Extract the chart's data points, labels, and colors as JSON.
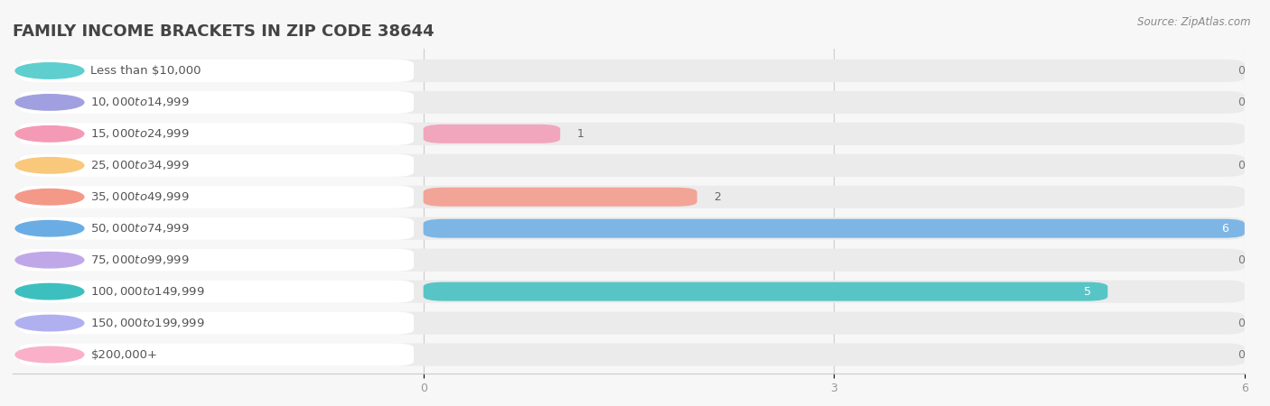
{
  "title": "Family Income Brackets in Zip Code 38644",
  "title_display": "FAMILY INCOME BRACKETS IN ZIP CODE 38644",
  "source": "Source: ZipAtlas.com",
  "categories": [
    "Less than $10,000",
    "$10,000 to $14,999",
    "$15,000 to $24,999",
    "$25,000 to $34,999",
    "$35,000 to $49,999",
    "$50,000 to $74,999",
    "$75,000 to $99,999",
    "$100,000 to $149,999",
    "$150,000 to $199,999",
    "$200,000+"
  ],
  "values": [
    0,
    0,
    1,
    0,
    2,
    6,
    0,
    5,
    0,
    0
  ],
  "bar_colors": [
    "#5ecece",
    "#a0a0e0",
    "#f49ab5",
    "#f9c87a",
    "#f49888",
    "#6aade4",
    "#c0a8e8",
    "#3dbfbf",
    "#b0b0f0",
    "#f9b0c8"
  ],
  "background_color": "#f7f7f7",
  "bar_bg_color": "#ebebeb",
  "label_bg_color": "#ffffff",
  "xlim_max": 6.0,
  "xticks": [
    0,
    3,
    6
  ],
  "title_fontsize": 13,
  "label_fontsize": 9.5,
  "value_fontsize": 9,
  "tick_fontsize": 9
}
